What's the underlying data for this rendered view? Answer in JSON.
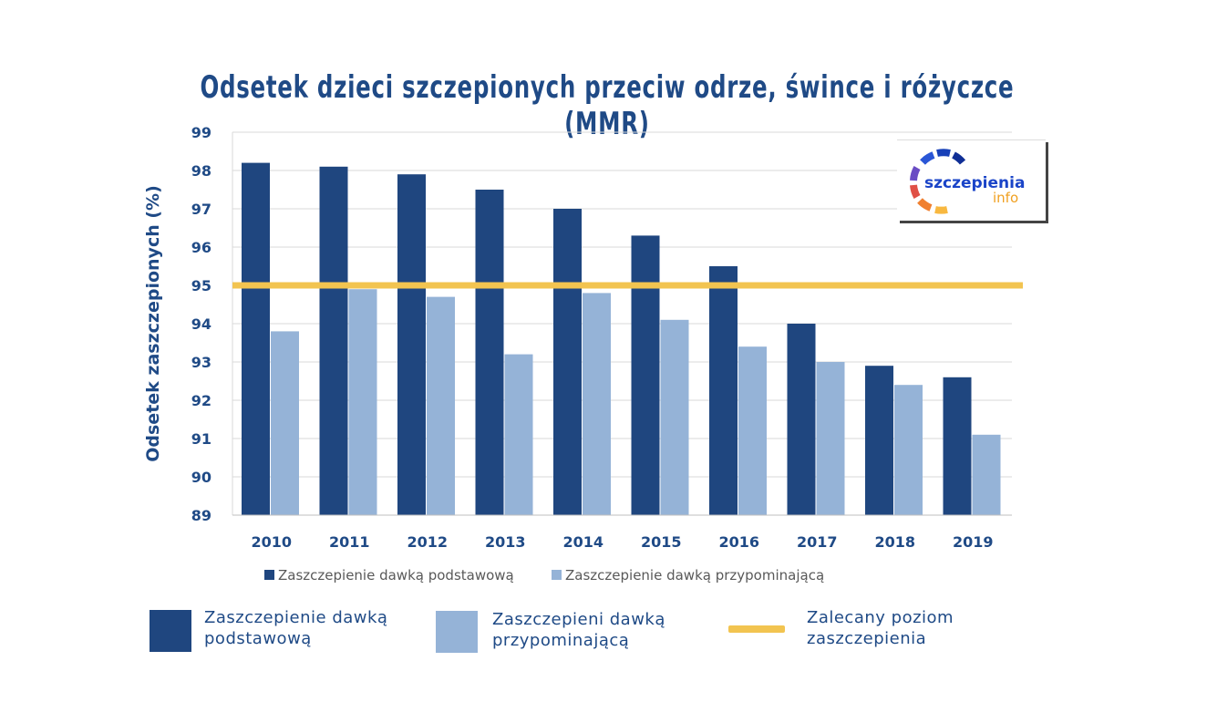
{
  "chart_data": {
    "type": "bar",
    "title": "Odsetek dzieci szczepionych przeciw odrze, śwince i różyczce (MMR)",
    "ylabel": "Odsetek zaszczepionych (%)",
    "xlabel": "",
    "ylim": [
      89,
      99
    ],
    "yticks": [
      "89",
      "90",
      "91",
      "92",
      "93",
      "94",
      "95",
      "96",
      "97",
      "98",
      "99"
    ],
    "categories": [
      "2010",
      "2011",
      "2012",
      "2013",
      "2014",
      "2015",
      "2016",
      "2017",
      "2018",
      "2019"
    ],
    "series": [
      {
        "name": "Zaszczepienie dawką podstawową",
        "color": "#1f467f",
        "values": [
          98.2,
          98.1,
          97.9,
          97.5,
          97.0,
          96.3,
          95.5,
          94.0,
          92.9,
          92.6
        ]
      },
      {
        "name": "Zaszczepienie dawką przypominającą",
        "color": "#95b3d7",
        "values": [
          93.8,
          94.9,
          94.7,
          93.2,
          94.8,
          94.1,
          93.4,
          93.0,
          92.4,
          91.1
        ]
      }
    ],
    "reference_line": {
      "value": 95,
      "color": "#f2c450",
      "name": "Zalecany poziom zaszczepienia"
    },
    "grid": true,
    "legend": "bottom"
  },
  "big_legend": [
    {
      "label_line1": "Zaszczepienie dawką",
      "label_line2": "podstawową"
    },
    {
      "label_line1": "Zaszczepieni dawką",
      "label_line2": "przypominającą"
    },
    {
      "label_line1": "Zalecany poziom",
      "label_line2": "zaszczepienia"
    }
  ],
  "logo": {
    "text1": "szczepienia",
    "text2": "info"
  }
}
